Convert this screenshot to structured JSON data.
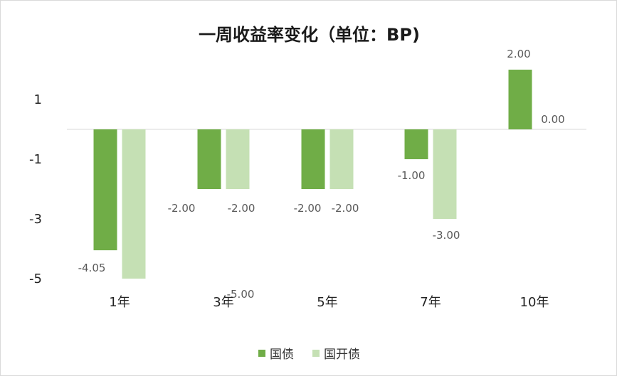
{
  "chart_data": {
    "type": "bar",
    "title": "一周收益率变化（单位：BP)",
    "categories": [
      "1年",
      "3年",
      "5年",
      "7年",
      "10年"
    ],
    "series": [
      {
        "name": "国债",
        "values": [
          -4.05,
          -2.0,
          -2.0,
          -1.0,
          2.0
        ],
        "labels": [
          "-4.05",
          "-2.00",
          "-2.00",
          "-1.00",
          "2.00"
        ],
        "color": "#70ad47"
      },
      {
        "name": "国开债",
        "values": [
          -5.0,
          -2.0,
          -2.0,
          -3.0,
          0.0
        ],
        "labels": [
          "-5.00",
          "-2.00",
          "-2.00",
          "-3.00",
          "0.00"
        ],
        "color": "#c5e0b4"
      }
    ],
    "yticks": [
      1,
      -1,
      -3,
      -5
    ],
    "ylim": [
      -5,
      2.2
    ],
    "legend_position": "bottom",
    "grid": false,
    "xlabel": "",
    "ylabel": ""
  }
}
